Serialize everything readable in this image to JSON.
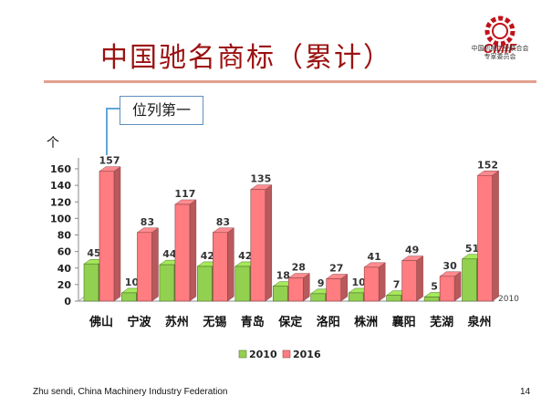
{
  "slide": {
    "title": "中国驰名商标（累计）",
    "callout": "位列第一",
    "unit": "个",
    "logo_text_line1": "中国机械工业联合会",
    "logo_text_line2": "专家委员会",
    "logo_mark": "CMIF",
    "footer_left": "Zhu sendi, China Machinery Industry Federation",
    "page_number": "14"
  },
  "chart_data": {
    "type": "bar",
    "title": "",
    "xlabel": "",
    "ylabel": "个",
    "ylim": [
      0,
      160
    ],
    "yticks": [
      0,
      20,
      40,
      60,
      80,
      100,
      120,
      140,
      160
    ],
    "categories": [
      "佛山",
      "宁波",
      "苏州",
      "无锡",
      "青岛",
      "保定",
      "洛阳",
      "株洲",
      "襄阳",
      "芜湖",
      "泉州"
    ],
    "series": [
      {
        "name": "2010",
        "color": "#92d050",
        "values": [
          45,
          10,
          44,
          42,
          42,
          18,
          9,
          10,
          7,
          5,
          51
        ]
      },
      {
        "name": "2016",
        "color": "#ff7c80",
        "values": [
          157,
          83,
          117,
          83,
          135,
          28,
          27,
          41,
          49,
          30,
          152
        ]
      }
    ],
    "annotation_right": "2010",
    "legend_position": "bottom",
    "grid": false
  }
}
